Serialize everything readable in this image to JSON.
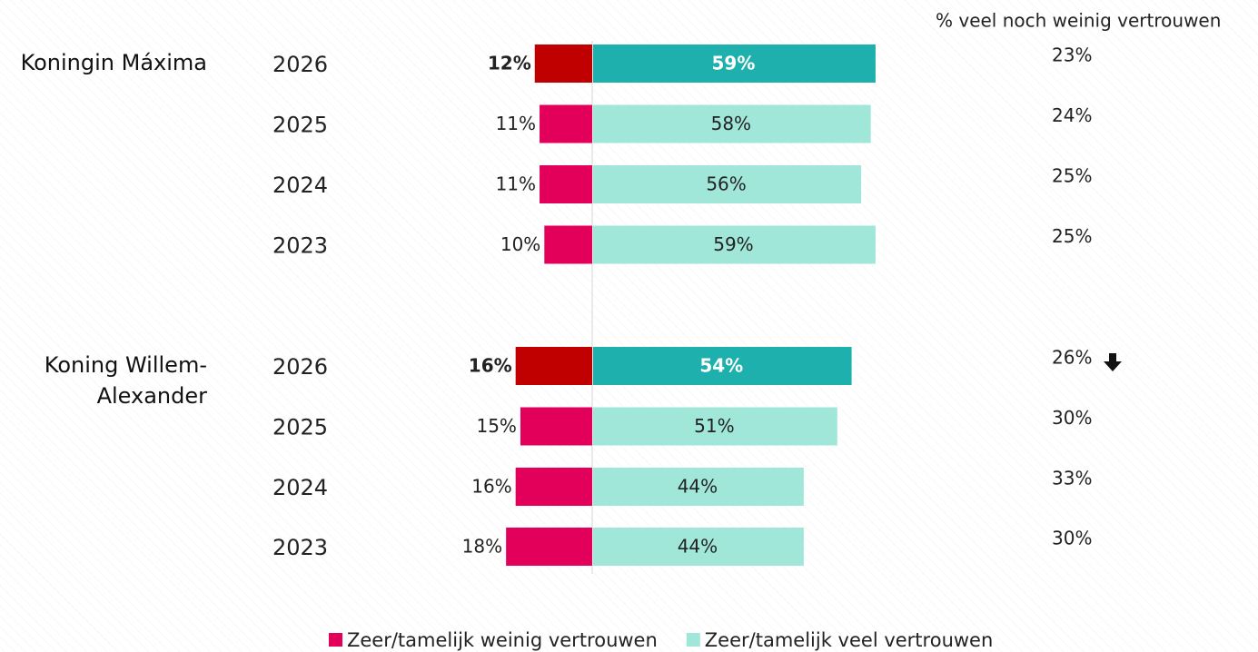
{
  "chart_data": {
    "type": "diverging-bar",
    "groups": [
      {
        "name": "Koningin Máxima",
        "categories": [
          "2026",
          "2025",
          "2024",
          "2023"
        ]
      },
      {
        "name": "Koning Willem-Alexander",
        "categories": [
          "2026",
          "2025",
          "2024",
          "2023"
        ]
      }
    ],
    "emphasis": [
      true,
      false,
      false,
      false,
      true,
      false,
      false,
      false
    ],
    "series": [
      {
        "name": "Zeer/tamelijk weinig vertrouwen",
        "color": "#e3005a",
        "emphasis_color": "#c00000",
        "side": "left",
        "values": [
          12,
          11,
          11,
          10,
          16,
          15,
          16,
          18
        ],
        "value_labels": [
          "12%",
          "11%",
          "11%",
          "10%",
          "16%",
          "15%",
          "16%",
          "18%"
        ]
      },
      {
        "name": "Zeer/tamelijk veel vertrouwen",
        "color": "#a0e7d9",
        "emphasis_color": "#1eb0ac",
        "side": "right",
        "values": [
          59,
          58,
          56,
          59,
          54,
          51,
          44,
          44
        ],
        "value_labels": [
          "59%",
          "58%",
          "56%",
          "59%",
          "54%",
          "51%",
          "44%",
          "44%"
        ]
      }
    ],
    "neutral": {
      "title": "% veel noch weinig vertrouwen",
      "values": [
        23,
        24,
        25,
        25,
        26,
        30,
        33,
        30
      ],
      "value_labels": [
        "23%",
        "24%",
        "25%",
        "25%",
        "26%",
        "30%",
        "33%",
        "30%"
      ]
    }
  }
}
